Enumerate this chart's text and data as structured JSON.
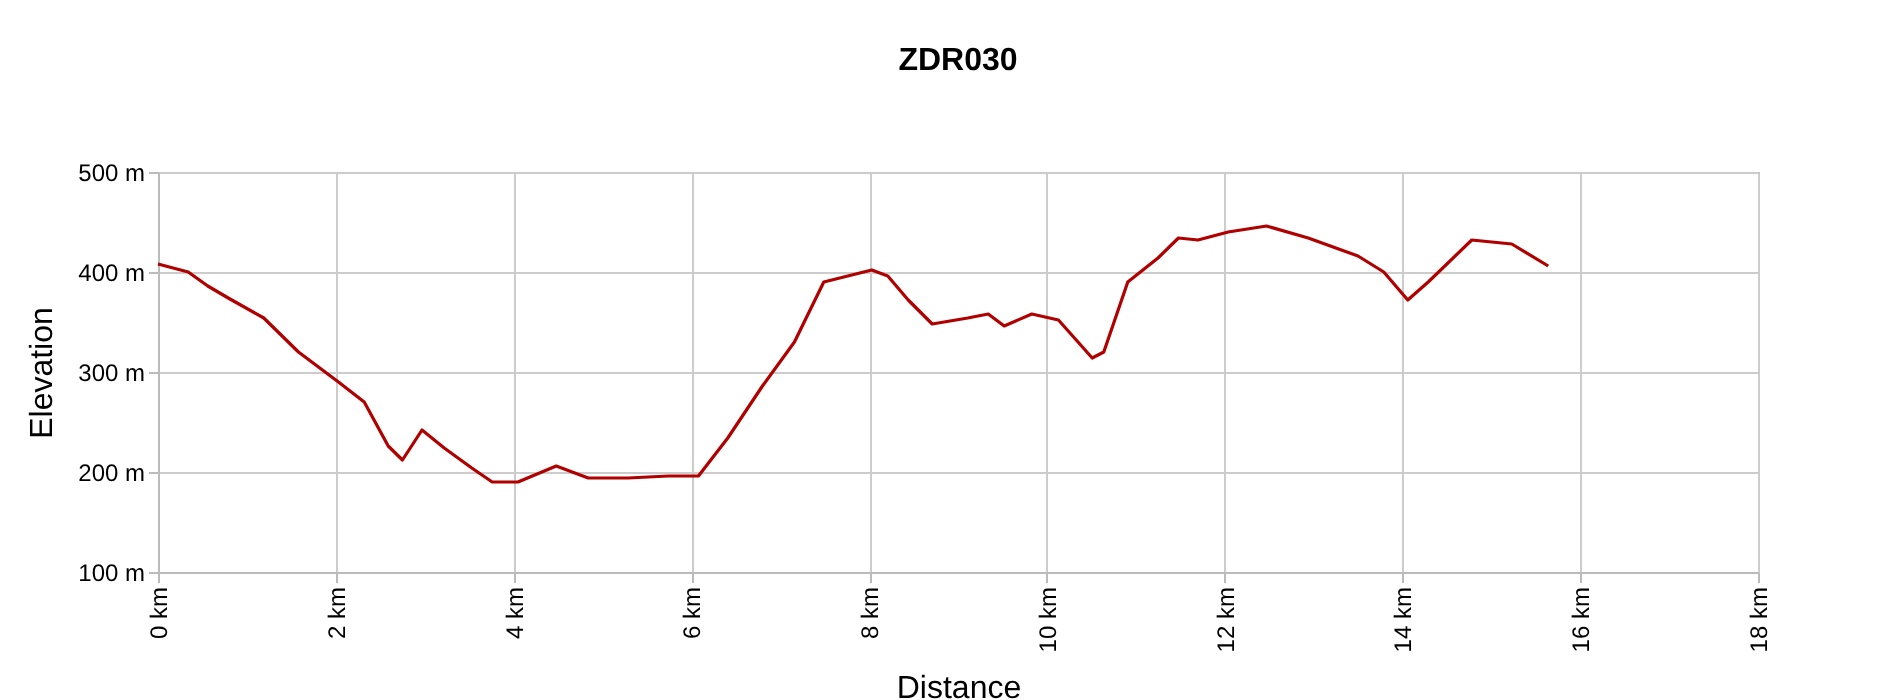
{
  "chart_data": {
    "type": "line",
    "title": "ZDR030",
    "xlabel": "Distance",
    "ylabel": "Elevation",
    "x": [
      0,
      0.34,
      0.56,
      0.79,
      1.19,
      1.58,
      2.03,
      2.32,
      2.59,
      2.75,
      2.97,
      3.22,
      3.53,
      3.76,
      4.05,
      4.48,
      4.84,
      5.29,
      5.74,
      6.08,
      6.41,
      6.8,
      7.16,
      7.49,
      7.76,
      8.03,
      8.21,
      8.44,
      8.71,
      9.11,
      9.34,
      9.52,
      9.83,
      10.13,
      10.35,
      10.51,
      10.64,
      10.91,
      11.25,
      11.48,
      11.7,
      12.04,
      12.47,
      12.94,
      13.5,
      13.79,
      14.06,
      14.29,
      14.78,
      15.23,
      15.64
    ],
    "series": [
      {
        "color": "#b00000",
        "values": [
          408,
          400,
          386,
          374,
          354,
          320,
          290,
          270,
          226,
          212,
          242,
          224,
          204,
          190,
          190,
          206,
          194,
          194,
          196,
          196,
          234,
          286,
          330,
          390,
          396,
          402,
          396,
          372,
          348,
          354,
          358,
          346,
          358,
          352,
          330,
          314,
          320,
          390,
          414,
          434,
          432,
          440,
          446,
          434,
          416,
          400,
          372,
          390,
          432,
          428,
          406
        ]
      }
    ],
    "xlim": [
      0,
      18
    ],
    "xticks": [
      {
        "value": 0,
        "label": "0 km"
      },
      {
        "value": 2,
        "label": "2 km"
      },
      {
        "value": 4,
        "label": "4 km"
      },
      {
        "value": 6,
        "label": "6 km"
      },
      {
        "value": 8,
        "label": "8 km"
      },
      {
        "value": 10,
        "label": "10 km"
      },
      {
        "value": 12,
        "label": "12 km"
      },
      {
        "value": 14,
        "label": "14 km"
      },
      {
        "value": 16,
        "label": "16 km"
      },
      {
        "value": 18,
        "label": "18 km"
      }
    ],
    "ylim": [
      100,
      500
    ],
    "yticks": [
      {
        "value": 100,
        "label": "100 m"
      },
      {
        "value": 200,
        "label": "200 m"
      },
      {
        "value": 300,
        "label": "300 m"
      },
      {
        "value": 400,
        "label": "400 m"
      },
      {
        "value": 500,
        "label": "500 m"
      }
    ],
    "grid": true,
    "legend": false,
    "marker": "none",
    "line_style": "solid"
  }
}
